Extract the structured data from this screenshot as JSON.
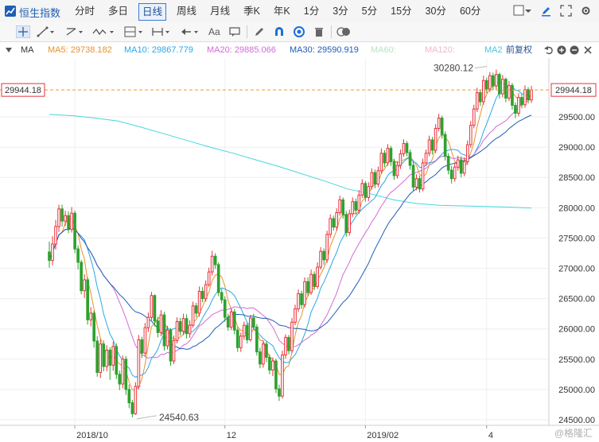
{
  "header": {
    "title": "恒生指数",
    "tabs": [
      "分时",
      "多日",
      "日线",
      "周线",
      "月线",
      "季K",
      "年K",
      "1分",
      "3分",
      "5分",
      "15分",
      "30分",
      "60分"
    ],
    "active_tab": "日线"
  },
  "toolbar": {
    "text_tool": "Aa"
  },
  "ma_bar": {
    "ma5": "MA5: 29738.182",
    "ma10": "MA10: 29867.779",
    "ma20": "MA20: 29885.066",
    "ma30": "MA30: 29590.919",
    "ma60": "MA60:",
    "ma120": "MA120:",
    "ma2": "MA2",
    "adjust": "前复权",
    "ma_label": "MA"
  },
  "colors": {
    "up": "#e8323c",
    "down": "#2ea12e",
    "ma5": "#e8932a",
    "ma10": "#29a8e6",
    "ma20": "#d36bd6",
    "ma30": "#1f5db8",
    "ma250": "#48d6dc",
    "accent": "#1e5fb5"
  },
  "chart_data": {
    "type": "candlestick",
    "ylim": [
      24400,
      30420
    ],
    "yticks": [
      "29500.00",
      "29000.00",
      "28500.00",
      "28000.00",
      "27500.00",
      "27000.00",
      "26500.00",
      "26000.00",
      "25500.00",
      "25000.00",
      "24500.00"
    ],
    "ytick_values": [
      29500,
      29000,
      28500,
      28000,
      27500,
      27000,
      26500,
      26000,
      25500,
      25000,
      24500
    ],
    "current_price": "29944.18",
    "current_value": 29944.18,
    "high_label": "30280.12",
    "high_value": 30280.12,
    "low_label": "24540.63",
    "low_value": 24540.63,
    "x_labels": [
      {
        "label": "2018/10",
        "idx": 8
      },
      {
        "label": "12",
        "idx": 55
      },
      {
        "label": "2019/02",
        "idx": 99
      },
      {
        "label": "4",
        "idx": 137
      }
    ],
    "candles": [
      [
        27270,
        27130,
        27440,
        27010
      ],
      [
        27130,
        27400,
        27530,
        27050
      ],
      [
        27400,
        27690,
        27800,
        27310
      ],
      [
        27690,
        27980,
        28050,
        27600
      ],
      [
        27980,
        27780,
        28050,
        27690
      ],
      [
        27780,
        27870,
        27950,
        27700
      ],
      [
        27870,
        27640,
        27940,
        27580
      ],
      [
        27640,
        27910,
        28010,
        27590
      ],
      [
        27910,
        27320,
        27950,
        27250
      ],
      [
        27320,
        27100,
        27380,
        26980
      ],
      [
        27100,
        26630,
        27140,
        26570
      ],
      [
        26630,
        26810,
        26900,
        26510
      ],
      [
        26810,
        26150,
        26850,
        26070
      ],
      [
        26150,
        26260,
        26360,
        26040
      ],
      [
        26260,
        25800,
        26300,
        25690
      ],
      [
        25800,
        25280,
        25880,
        25210
      ],
      [
        25280,
        25750,
        25830,
        25190
      ],
      [
        25750,
        25380,
        25810,
        25300
      ],
      [
        25380,
        25650,
        25730,
        25300
      ],
      [
        25650,
        25400,
        25700,
        25160
      ],
      [
        25400,
        25710,
        25790,
        25310
      ],
      [
        25710,
        25250,
        25760,
        25170
      ],
      [
        25250,
        25090,
        25310,
        24990
      ],
      [
        25090,
        25500,
        25560,
        25020
      ],
      [
        25500,
        25000,
        25550,
        24910
      ],
      [
        25000,
        24780,
        25080,
        24690
      ],
      [
        24780,
        24600,
        24830,
        24540
      ],
      [
        24600,
        25050,
        25120,
        24580
      ],
      [
        25050,
        25820,
        25900,
        25000
      ],
      [
        25820,
        25600,
        25870,
        25520
      ],
      [
        25600,
        26020,
        26100,
        25550
      ],
      [
        26020,
        26190,
        26270,
        25950
      ],
      [
        26190,
        26550,
        26610,
        26140
      ],
      [
        26550,
        26130,
        26570,
        26040
      ],
      [
        26130,
        25940,
        26200,
        25860
      ],
      [
        25940,
        26230,
        26310,
        25880
      ],
      [
        26230,
        25720,
        26280,
        25640
      ],
      [
        25720,
        25980,
        26050,
        25660
      ],
      [
        25980,
        25470,
        26010,
        25390
      ],
      [
        25470,
        25810,
        25890,
        25420
      ],
      [
        25810,
        26120,
        26190,
        25760
      ],
      [
        26120,
        25960,
        26180,
        25890
      ],
      [
        25960,
        26170,
        26250,
        25900
      ],
      [
        26170,
        25920,
        26240,
        25840
      ],
      [
        25920,
        26060,
        26140,
        25850
      ],
      [
        26060,
        26380,
        26450,
        26020
      ],
      [
        26380,
        26260,
        26430,
        26190
      ],
      [
        26260,
        26620,
        26700,
        26200
      ],
      [
        26620,
        26500,
        26690,
        26440
      ],
      [
        26500,
        26730,
        26800,
        26450
      ],
      [
        26730,
        26940,
        27010,
        26690
      ],
      [
        26940,
        27200,
        27290,
        26880
      ],
      [
        27200,
        27060,
        27250,
        26990
      ],
      [
        27060,
        26600,
        27100,
        26540
      ],
      [
        26600,
        26480,
        26660,
        26420
      ],
      [
        26480,
        26190,
        26540,
        26120
      ],
      [
        26190,
        26030,
        26250,
        25970
      ],
      [
        26030,
        26280,
        26340,
        25980
      ],
      [
        26280,
        25980,
        26330,
        25910
      ],
      [
        25980,
        25690,
        26030,
        25620
      ],
      [
        25690,
        25880,
        25940,
        25620
      ],
      [
        25880,
        26060,
        26120,
        25820
      ],
      [
        26060,
        25820,
        26100,
        25760
      ],
      [
        25820,
        26180,
        26230,
        25790
      ],
      [
        26180,
        26030,
        26250,
        25980
      ],
      [
        26030,
        25620,
        26080,
        25560
      ],
      [
        25620,
        25420,
        25690,
        25350
      ],
      [
        25420,
        25750,
        25810,
        25360
      ],
      [
        25750,
        25530,
        25800,
        25450
      ],
      [
        25530,
        25320,
        25580,
        25250
      ],
      [
        25320,
        25470,
        25530,
        25220
      ],
      [
        25470,
        25010,
        25510,
        24940
      ],
      [
        25010,
        24890,
        25080,
        24810
      ],
      [
        24890,
        25570,
        25640,
        24850
      ],
      [
        25570,
        25860,
        25910,
        25510
      ],
      [
        25860,
        25640,
        25900,
        25580
      ],
      [
        25640,
        26110,
        26180,
        25600
      ],
      [
        26110,
        26330,
        26400,
        26060
      ],
      [
        26330,
        26580,
        26650,
        26280
      ],
      [
        26580,
        26400,
        26630,
        26330
      ],
      [
        26400,
        26780,
        26850,
        26350
      ],
      [
        26780,
        26600,
        26850,
        26540
      ],
      [
        26600,
        26900,
        26980,
        26560
      ],
      [
        26900,
        26700,
        26950,
        26640
      ],
      [
        26700,
        27020,
        27100,
        26660
      ],
      [
        27020,
        27280,
        27350,
        26980
      ],
      [
        27280,
        27140,
        27330,
        27060
      ],
      [
        27140,
        27560,
        27620,
        27090
      ],
      [
        27560,
        27820,
        27890,
        27500
      ],
      [
        27820,
        27680,
        27870,
        27620
      ],
      [
        27680,
        27920,
        27990,
        27620
      ],
      [
        27920,
        28130,
        28200,
        27870
      ],
      [
        28130,
        27890,
        28170,
        27820
      ],
      [
        27890,
        27590,
        27950,
        27520
      ],
      [
        27590,
        27900,
        27970,
        27540
      ],
      [
        27900,
        28100,
        28170,
        27850
      ],
      [
        28100,
        27960,
        28150,
        27900
      ],
      [
        27960,
        28210,
        28290,
        27900
      ],
      [
        28210,
        28400,
        28470,
        28160
      ],
      [
        28400,
        28170,
        28440,
        28100
      ],
      [
        28170,
        28350,
        28420,
        28110
      ],
      [
        28350,
        28580,
        28650,
        28300
      ],
      [
        28580,
        28390,
        28630,
        28320
      ],
      [
        28390,
        28610,
        28680,
        28340
      ],
      [
        28610,
        28900,
        28980,
        28560
      ],
      [
        28900,
        28740,
        28950,
        28670
      ],
      [
        28740,
        28980,
        29050,
        28690
      ],
      [
        28980,
        28760,
        29020,
        28690
      ],
      [
        28760,
        28530,
        28810,
        28460
      ],
      [
        28530,
        28700,
        28770,
        28480
      ],
      [
        28700,
        28890,
        28960,
        28640
      ],
      [
        28890,
        29060,
        29130,
        28840
      ],
      [
        29060,
        28910,
        29100,
        28850
      ],
      [
        28910,
        28700,
        28960,
        28630
      ],
      [
        28700,
        28340,
        28760,
        28280
      ],
      [
        28340,
        28480,
        28550,
        28290
      ],
      [
        28480,
        28310,
        28530,
        28250
      ],
      [
        28310,
        28740,
        28810,
        28270
      ],
      [
        28740,
        28900,
        28960,
        28690
      ],
      [
        28900,
        29120,
        29190,
        28850
      ],
      [
        29120,
        28950,
        29170,
        28880
      ],
      [
        28950,
        29310,
        29380,
        28900
      ],
      [
        29310,
        29480,
        29550,
        29260
      ],
      [
        29480,
        29210,
        29520,
        29140
      ],
      [
        29210,
        28850,
        29260,
        28780
      ],
      [
        28850,
        28620,
        28900,
        28550
      ],
      [
        28620,
        28480,
        28690,
        28400
      ],
      [
        28480,
        28670,
        28740,
        28430
      ],
      [
        28670,
        28790,
        28860,
        28610
      ],
      [
        28790,
        28570,
        28850,
        28500
      ],
      [
        28570,
        28760,
        28830,
        28520
      ],
      [
        28760,
        29040,
        29110,
        28710
      ],
      [
        29040,
        29360,
        29430,
        28990
      ],
      [
        29360,
        29630,
        29700,
        29310
      ],
      [
        29630,
        29900,
        29980,
        29580
      ],
      [
        29900,
        29750,
        29950,
        29680
      ],
      [
        29750,
        30100,
        30180,
        29700
      ],
      [
        30100,
        29960,
        30150,
        29890
      ],
      [
        29960,
        30180,
        30240,
        29910
      ],
      [
        30180,
        30010,
        30230,
        29940
      ],
      [
        30010,
        30200,
        30280,
        29950
      ],
      [
        30200,
        29880,
        30230,
        29800
      ],
      [
        29880,
        30120,
        30190,
        29820
      ],
      [
        30120,
        29810,
        30150,
        29740
      ],
      [
        29810,
        30020,
        30090,
        29760
      ],
      [
        30020,
        29690,
        30060,
        29620
      ],
      [
        29690,
        29560,
        29740,
        29480
      ],
      [
        29560,
        29820,
        29890,
        29510
      ],
      [
        29820,
        29700,
        29880,
        29640
      ],
      [
        29700,
        29950,
        30020,
        29650
      ],
      [
        29950,
        29780,
        29990,
        29720
      ],
      [
        29780,
        29944,
        30010,
        29730
      ]
    ],
    "ma250": [
      29540,
      29520,
      29480,
      29430,
      29330,
      29220,
      29110,
      29000,
      28900,
      28790,
      28680,
      28560,
      28440,
      28310,
      28230,
      28130,
      28070,
      28040,
      28030,
      28020,
      28010,
      27995
    ]
  }
}
